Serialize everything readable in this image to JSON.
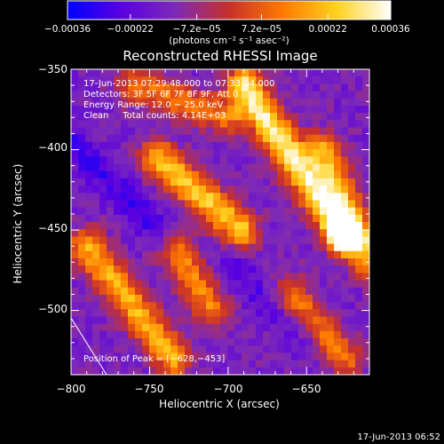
{
  "chart_data": {
    "type": "heatmap",
    "title": "Reconstructed RHESSI Image",
    "xlabel": "Heliocentric X (arcsec)",
    "ylabel": "Heliocentric Y (arcsec)",
    "xlim": [
      -800,
      -610
    ],
    "ylim": [
      -540,
      -350
    ],
    "x_ticks": [
      {
        "value": -800,
        "label": "−800"
      },
      {
        "value": -750,
        "label": "−750"
      },
      {
        "value": -700,
        "label": "−700"
      },
      {
        "value": -650,
        "label": "−650"
      }
    ],
    "y_ticks": [
      {
        "value": -350,
        "label": "−350"
      },
      {
        "value": -400,
        "label": "−400"
      },
      {
        "value": -450,
        "label": "−450"
      },
      {
        "value": -500,
        "label": "−500"
      }
    ],
    "colorbar": {
      "min": -0.00036,
      "max": 0.00036,
      "ticks": [
        {
          "value": -0.00036,
          "label": "−0.00036"
        },
        {
          "value": -0.00022,
          "label": "−0.00022"
        },
        {
          "value": -7.2e-05,
          "label": "−7.2e−05"
        },
        {
          "value": 7.2e-05,
          "label": "7.2e−05"
        },
        {
          "value": 0.00022,
          "label": "0.00022"
        },
        {
          "value": 0.00036,
          "label": "0.00036"
        }
      ],
      "unit_label": "(photons cm⁻² s⁻¹ asec⁻²)",
      "colors": [
        "#0000ff",
        "#5a00e0",
        "#7d2ab8",
        "#c8302a",
        "#ff7a00",
        "#ffd21e",
        "#ffffff"
      ]
    },
    "info_lines": [
      "17-Jun-2013 07:29:48.000 to 07:33:04.000",
      "Detectors: 3F 5F 6F 7F 8F 9F, Att 0",
      "Energy Range: 12.0 − 25.0 keV",
      "Clean     Total counts: 4.14E+03"
    ],
    "peak_label": "Position of Peak = [−628,−453]",
    "peak": {
      "x": -628,
      "y": -453
    },
    "timestamp": "17-Jun-2013 06:52",
    "bright_ridges": [
      {
        "x1": -745,
        "y1": -405,
        "x2": -692,
        "y2": -450,
        "strength": 0.85
      },
      {
        "x1": -690,
        "y1": -360,
        "x2": -625,
        "y2": -455,
        "strength": 1.0
      },
      {
        "x1": -640,
        "y1": -400,
        "x2": -610,
        "y2": -470,
        "strength": 0.7
      },
      {
        "x1": -790,
        "y1": -460,
        "x2": -735,
        "y2": -530,
        "strength": 0.75
      },
      {
        "x1": -760,
        "y1": -360,
        "x2": -700,
        "y2": -380,
        "strength": 0.55
      },
      {
        "x1": -735,
        "y1": -460,
        "x2": -710,
        "y2": -500,
        "strength": 0.6
      },
      {
        "x1": -660,
        "y1": -490,
        "x2": -625,
        "y2": -530,
        "strength": 0.55
      }
    ],
    "dim_bands": [
      {
        "x1": -800,
        "y1": -395,
        "x2": -740,
        "y2": -455,
        "strength": 0.8
      },
      {
        "x1": -700,
        "y1": -470,
        "x2": -650,
        "y2": -520,
        "strength": 0.6
      }
    ]
  }
}
